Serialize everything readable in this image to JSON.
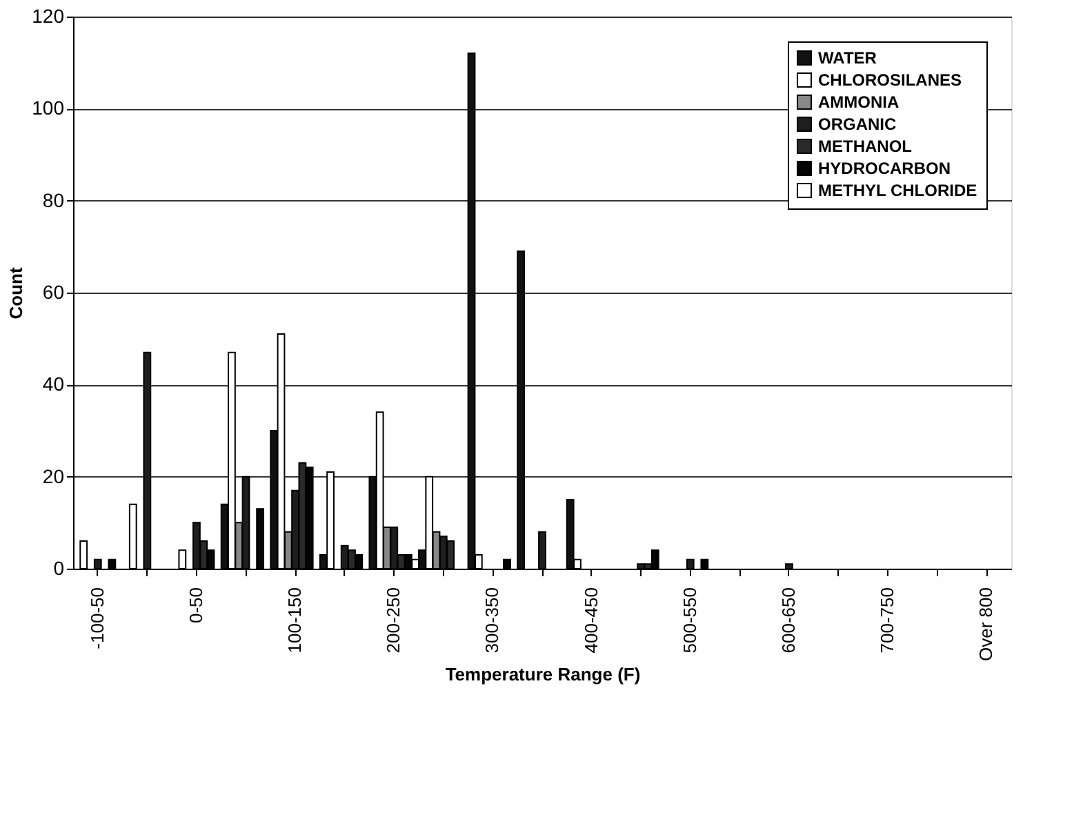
{
  "chart_data": {
    "type": "bar",
    "xlabel": "Temperature Range (F)",
    "ylabel": "Count",
    "categories": [
      "-100-50",
      null,
      "0-50",
      null,
      "100-150",
      null,
      "200-250",
      null,
      "300-350",
      null,
      "400-450",
      null,
      "500-550",
      null,
      "600-650",
      null,
      "700-750",
      null,
      "Over 800"
    ],
    "series": [
      {
        "name": "WATER",
        "color": "#111111",
        "values": [
          null,
          null,
          null,
          14,
          30,
          3,
          20,
          4,
          112,
          69,
          15,
          null,
          null,
          null,
          null,
          null,
          null,
          null,
          null
        ]
      },
      {
        "name": "CHLOROSILANES",
        "color": "#ffffff",
        "values": [
          6,
          14,
          4,
          47,
          51,
          21,
          34,
          20,
          3,
          null,
          2,
          null,
          null,
          null,
          null,
          null,
          null,
          null,
          null
        ]
      },
      {
        "name": "AMMONIA",
        "color": "#888888",
        "values": [
          null,
          null,
          null,
          10,
          8,
          null,
          9,
          8,
          null,
          null,
          null,
          null,
          null,
          null,
          null,
          null,
          null,
          null,
          null
        ]
      },
      {
        "name": "ORGANIC",
        "color": "#1e1e1e",
        "values": [
          2,
          47,
          10,
          20,
          17,
          5,
          9,
          7,
          null,
          8,
          null,
          1,
          2,
          null,
          1,
          null,
          null,
          null,
          null
        ]
      },
      {
        "name": "METHANOL",
        "color": "#2a2a2a",
        "values": [
          null,
          null,
          6,
          null,
          23,
          4,
          3,
          6,
          null,
          null,
          null,
          1,
          null,
          null,
          null,
          null,
          null,
          null,
          null
        ]
      },
      {
        "name": "HYDROCARBON",
        "color": "#050505",
        "values": [
          2,
          null,
          4,
          13,
          22,
          3,
          3,
          null,
          2,
          null,
          null,
          4,
          2,
          null,
          null,
          null,
          null,
          null,
          null
        ]
      },
      {
        "name": "METHYL CHLORIDE",
        "color": "#fefefe",
        "values": [
          null,
          null,
          null,
          null,
          null,
          null,
          2,
          null,
          null,
          null,
          null,
          null,
          null,
          null,
          null,
          null,
          null,
          null,
          null
        ]
      }
    ],
    "ylim": [
      0,
      120
    ],
    "yticks": [
      0,
      20,
      40,
      60,
      80,
      100,
      120
    ],
    "grid": "y",
    "legend": "top right"
  }
}
